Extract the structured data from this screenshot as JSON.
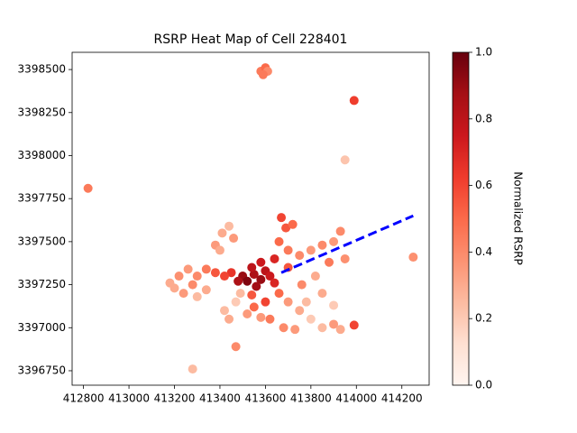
{
  "chart_data": {
    "type": "scatter",
    "title": "RSRP Heat Map of Cell 228401",
    "colorbar_label": "Normalized RSRP",
    "x": [
      413580,
      413600,
      413610,
      413590,
      413990,
      413950,
      412820,
      414250,
      413280,
      413470,
      413990,
      413500,
      413520,
      413550,
      413580,
      413600,
      413620,
      413480,
      413540,
      413560,
      413640,
      413450,
      413420,
      413380,
      413340,
      413300,
      413260,
      413220,
      413200,
      413240,
      413280,
      413180,
      413380,
      413410,
      413440,
      413460,
      413400,
      413670,
      413690,
      413660,
      413700,
      413720,
      413750,
      413800,
      413850,
      413900,
      413930,
      413950,
      413880,
      413700,
      413660,
      413700,
      413750,
      413800,
      413850,
      413900,
      413930,
      413620,
      413580,
      413550,
      413680,
      413730,
      413780,
      413850,
      413900,
      413470,
      413420,
      413440,
      413490,
      413520,
      413600,
      413640,
      413580,
      413820,
      413340,
      413760,
      413300,
      413540
    ],
    "y": [
      3398490,
      3398510,
      3398490,
      3398470,
      3398320,
      3397975,
      3397810,
      3397410,
      3396760,
      3396890,
      3397015,
      3397300,
      3397270,
      3397310,
      3397280,
      3397330,
      3397300,
      3397270,
      3397350,
      3397240,
      3397260,
      3397320,
      3397300,
      3397320,
      3397340,
      3397300,
      3397340,
      3397300,
      3397230,
      3397200,
      3397250,
      3397260,
      3397480,
      3397550,
      3397590,
      3397520,
      3397450,
      3397640,
      3397580,
      3397500,
      3397450,
      3397600,
      3397420,
      3397450,
      3397480,
      3397500,
      3397560,
      3397400,
      3397380,
      3397350,
      3397200,
      3397150,
      3397100,
      3397050,
      3397000,
      3397020,
      3396990,
      3397050,
      3397060,
      3397120,
      3397000,
      3396990,
      3397150,
      3397200,
      3397130,
      3397150,
      3397100,
      3397050,
      3397200,
      3397080,
      3397150,
      3397400,
      3397380,
      3397300,
      3397220,
      3397250,
      3397180,
      3397190
    ],
    "values": [
      0.45,
      0.5,
      0.4,
      0.45,
      0.62,
      0.22,
      0.45,
      0.38,
      0.25,
      0.4,
      0.6,
      0.9,
      0.95,
      0.85,
      0.9,
      0.8,
      0.75,
      0.85,
      0.8,
      0.88,
      0.7,
      0.65,
      0.6,
      0.55,
      0.45,
      0.4,
      0.35,
      0.38,
      0.3,
      0.35,
      0.4,
      0.3,
      0.35,
      0.3,
      0.25,
      0.35,
      0.3,
      0.6,
      0.55,
      0.5,
      0.45,
      0.5,
      0.4,
      0.35,
      0.4,
      0.35,
      0.4,
      0.38,
      0.45,
      0.55,
      0.5,
      0.35,
      0.3,
      0.2,
      0.25,
      0.35,
      0.3,
      0.45,
      0.35,
      0.5,
      0.4,
      0.35,
      0.25,
      0.3,
      0.2,
      0.2,
      0.25,
      0.3,
      0.25,
      0.35,
      0.6,
      0.7,
      0.75,
      0.3,
      0.3,
      0.4,
      0.25,
      0.55
    ],
    "colormap": [
      "#fff5f0",
      "#fee0d2",
      "#fcbba1",
      "#fc9272",
      "#fb6a4a",
      "#ef3b2c",
      "#cb181d",
      "#a50f15",
      "#67000d"
    ],
    "line": {
      "color": "#0000ff",
      "x": [
        413670,
        414250
      ],
      "y": [
        3397320,
        3397650
      ]
    },
    "xlim": [
      412750,
      414320
    ],
    "ylim": [
      3396666,
      3398600
    ],
    "clim": [
      0,
      1
    ],
    "xticks": [
      412800,
      413000,
      413200,
      413400,
      413600,
      413800,
      414000,
      414200
    ],
    "yticks": [
      3396750,
      3397000,
      3397250,
      3397500,
      3397750,
      3398000,
      3398250,
      3398500
    ],
    "cticks": [
      {
        "value": 0,
        "label": "0.0"
      },
      0.2,
      0.4,
      0.6,
      0.8,
      {
        "value": 1,
        "label": "1.0"
      }
    ]
  }
}
